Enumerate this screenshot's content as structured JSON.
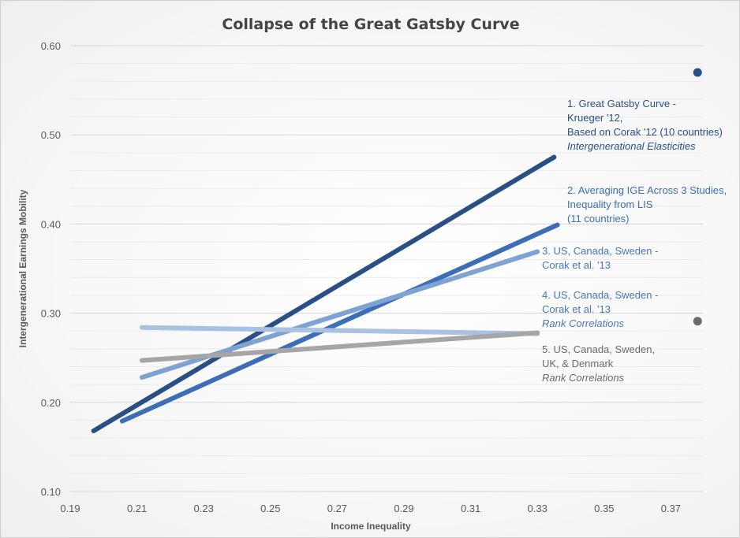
{
  "chart_data": {
    "type": "line",
    "title": "Collapse of the Great Gatsby Curve",
    "xlabel": "Income Inequality",
    "ylabel": "Intergenerational Earnings Mobility",
    "xlim": [
      0.19,
      0.38
    ],
    "ylim": [
      0.1,
      0.6
    ],
    "xticks": [
      "0.19",
      "0.21",
      "0.23",
      "0.25",
      "0.27",
      "0.29",
      "0.31",
      "0.33",
      "0.35",
      "0.37"
    ],
    "yticks": [
      "0.10",
      "0.20",
      "0.30",
      "0.40",
      "0.50",
      "0.60"
    ],
    "grid": true,
    "series": [
      {
        "name": "1. Great Gatsby Curve - Krueger '12, Based on Corak '12 (10 countries) Intergenerational Elasticities",
        "color": "#2a4f85",
        "x": [
          0.197,
          0.335
        ],
        "y": [
          0.168,
          0.475
        ],
        "label_lines": [
          "1. Great Gatsby Curve -",
          "Krueger '12,",
          "Based on Corak '12 (10 countries)"
        ],
        "label_italic": "Intergenerational Elasticities",
        "label_color": "#2a4f85"
      },
      {
        "name": "2. Averaging IGE Across 3 Studies, Inequality from LIS (11 countries)",
        "color": "#3d6db5",
        "x": [
          0.2056,
          0.336
        ],
        "y": [
          0.179,
          0.399
        ],
        "label_lines": [
          "2. Averaging IGE Across 3 Studies,",
          "Inequality from LIS",
          "(11 countries)"
        ],
        "label_italic": "",
        "label_color": "#3d6db5"
      },
      {
        "name": "3. US, Canada, Sweden - Corak et al. '13",
        "color": "#7ea2d4",
        "x": [
          0.2115,
          0.33
        ],
        "y": [
          0.228,
          0.369
        ],
        "label_lines": [
          "3. US, Canada, Sweden -",
          "Corak et al. '13"
        ],
        "label_italic": "",
        "label_color": "#4a76b8"
      },
      {
        "name": "4. US, Canada, Sweden - Corak et al. '13 Rank Correlations",
        "color": "#a9c1e2",
        "x": [
          0.2115,
          0.33
        ],
        "y": [
          0.284,
          0.277
        ],
        "label_lines": [
          "4. US, Canada, Sweden -",
          "Corak et al. '13"
        ],
        "label_italic": "Rank Correlations",
        "label_color": "#4a76b8"
      },
      {
        "name": "5. US, Canada, Sweden, UK, & Denmark Rank Correlations",
        "color": "#a6a6a6",
        "x": [
          0.2115,
          0.33
        ],
        "y": [
          0.247,
          0.278
        ],
        "label_lines": [
          "5. US, Canada, Sweden,",
          "UK, & Denmark"
        ],
        "label_italic": "Rank Correlations",
        "label_color": "#6b6b6b"
      }
    ],
    "points": [
      {
        "x": 0.378,
        "y": 0.57,
        "color": "#2a4f85"
      },
      {
        "x": 0.378,
        "y": 0.291,
        "color": "#6b6b6b"
      }
    ]
  }
}
